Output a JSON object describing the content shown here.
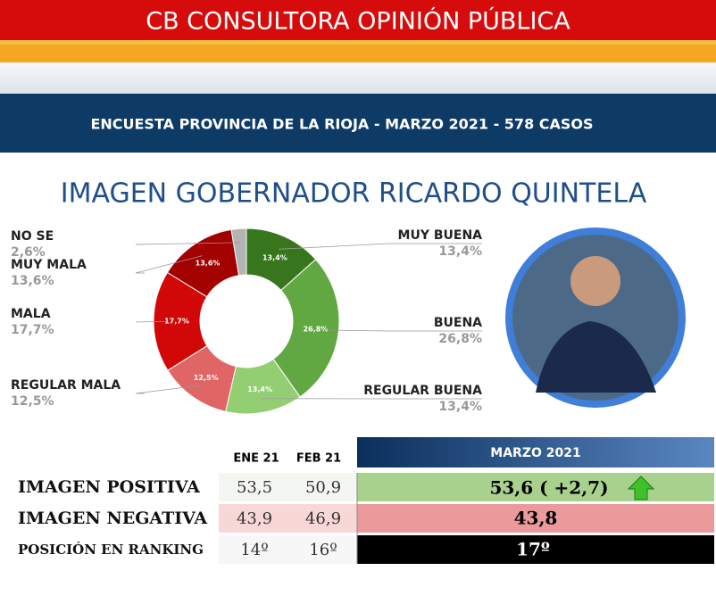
{
  "header": {
    "title": "CB CONSULTORA OPINIÓN PÚBLICA",
    "subtitle": "ENCUESTA PROVINCIA DE LA RIOJA - MARZO 2021 - 578 CASOS"
  },
  "chart_data": {
    "type": "donut",
    "title": "IMAGEN GOBERNADOR RICARDO QUINTELA",
    "categories": [
      "MUY BUENA",
      "BUENA",
      "REGULAR BUENA",
      "REGULAR MALA",
      "MALA",
      "MUY MALA",
      "NO SE"
    ],
    "values": [
      13.4,
      26.8,
      13.4,
      12.5,
      17.7,
      13.6,
      2.6
    ],
    "value_labels": [
      "13,4%",
      "26,8%",
      "13,4%",
      "12,5%",
      "17,7%",
      "13,6%",
      "2,6%"
    ],
    "colors": [
      "#38761d",
      "#62a842",
      "#93cf72",
      "#e06666",
      "#d20808",
      "#a30000",
      "#b3b3b3"
    ]
  },
  "table": {
    "columns": [
      "ENE 21",
      "FEB 21",
      "MARZO 2021"
    ],
    "rows": [
      [
        "IMAGEN POSITIVA",
        "53,5",
        "50,9",
        "53,6 ( +2,7)"
      ],
      [
        "IMAGEN NEGATIVA",
        "43,9",
        "46,9",
        "43,8"
      ],
      [
        "POSICIÓN EN RANKING",
        "14º",
        "16º",
        "17º"
      ]
    ]
  }
}
